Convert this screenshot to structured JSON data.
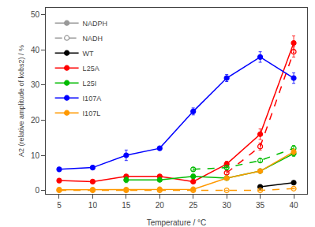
{
  "chart_data": {
    "type": "line",
    "x_label": "Temperature / °C",
    "y_label": "A2 (relative amplitude of kobs2) / %",
    "x": [
      5,
      10,
      15,
      20,
      25,
      30,
      35,
      40
    ],
    "series": [
      {
        "name": "WT",
        "color": "#000000",
        "line_style": "solid",
        "marker": "circle",
        "values": [
          null,
          null,
          null,
          null,
          null,
          null,
          1.0,
          2.2
        ],
        "yerr": [
          null,
          null,
          null,
          null,
          null,
          null,
          0.3,
          0.4
        ]
      },
      {
        "name": "L25A",
        "color": "#ff0000",
        "line_style": "solid",
        "marker": "circle",
        "values": [
          2.8,
          2.5,
          4.0,
          4.0,
          2.5,
          7.5,
          16.0,
          42.0
        ],
        "yerr": [
          0.4,
          0.3,
          0.5,
          0.5,
          0.4,
          0.8,
          1.5,
          2.0
        ]
      },
      {
        "color": "#ff0000",
        "line_style": "dashed",
        "marker": "open circle",
        "values": [
          null,
          null,
          null,
          null,
          null,
          5.0,
          12.5,
          39.5
        ],
        "yerr": [
          null,
          null,
          null,
          null,
          null,
          0.5,
          1.0,
          1.5
        ]
      },
      {
        "name": "L25I",
        "color": "#00bb00",
        "line_style": "solid",
        "marker": "circle",
        "values": [
          null,
          null,
          3.0,
          3.0,
          4.0,
          3.5,
          5.5,
          10.5
        ],
        "yerr": [
          null,
          null,
          0.8,
          0.5,
          0.6,
          0.4,
          0.5,
          0.8
        ]
      },
      {
        "color": "#00bb00",
        "line_style": "dashed",
        "marker": "open circle",
        "values": [
          null,
          null,
          null,
          null,
          6.0,
          6.5,
          8.5,
          12.0
        ],
        "yerr": [
          null,
          null,
          null,
          null,
          0.5,
          0.5,
          0.5,
          0.8
        ]
      },
      {
        "name": "I107A",
        "color": "#0000ff",
        "line_style": "solid",
        "marker": "circle",
        "values": [
          6.0,
          6.5,
          10.0,
          12.0,
          22.5,
          32.0,
          38.0,
          32.0
        ],
        "yerr": [
          0.5,
          0.5,
          1.5,
          0.5,
          1.0,
          1.0,
          1.5,
          1.5
        ]
      },
      {
        "name": "I107L",
        "color": "#ff9900",
        "line_style": "solid",
        "marker": "circle",
        "values": [
          0.2,
          0.2,
          0.2,
          0.3,
          0.3,
          3.5,
          5.5,
          11.0
        ],
        "yerr": [
          0.1,
          0.1,
          0.1,
          0.1,
          0.1,
          0.5,
          0.6,
          0.8
        ]
      },
      {
        "color": "#ff9900",
        "line_style": "dashed",
        "marker": "open circle",
        "values": [
          0.0,
          0.0,
          0.0,
          0.0,
          0.0,
          0.0,
          0.0,
          0.5
        ],
        "yerr": [
          0.05,
          0.05,
          0.05,
          0.05,
          0.05,
          0.05,
          0.05,
          0.1
        ]
      },
      {
        "name": "NADPH",
        "color": "#999999",
        "line_style": "solid",
        "marker": "circle",
        "values": [
          null,
          null,
          null,
          null,
          null,
          null,
          null,
          null
        ]
      },
      {
        "name": "NADH",
        "color": "#999999",
        "line_style": "dashed",
        "marker": "open circle",
        "values": [
          null,
          null,
          null,
          null,
          null,
          null,
          null,
          null
        ]
      }
    ],
    "xlim": [
      3,
      42
    ],
    "ylim": [
      -1,
      52
    ],
    "xticks": [
      5,
      10,
      15,
      20,
      25,
      30,
      35,
      40
    ],
    "yticks": [
      0,
      10,
      20,
      30,
      40,
      50
    ],
    "grid": false,
    "legend": "upper left"
  }
}
